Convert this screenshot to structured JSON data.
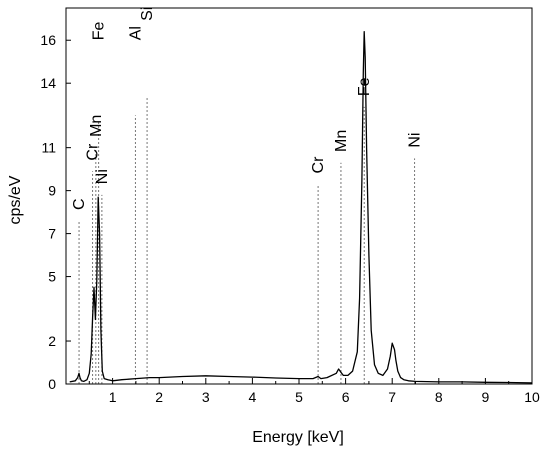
{
  "chart_data": {
    "type": "line",
    "title": "",
    "xlabel": "Energy [keV]",
    "ylabel": "cps/eV",
    "xlim": [
      0,
      10
    ],
    "ylim": [
      0,
      17.5
    ],
    "x_ticks": [
      1,
      2,
      3,
      4,
      5,
      6,
      7,
      8,
      9,
      10
    ],
    "y_ticks": [
      0,
      2,
      5,
      7,
      9,
      11,
      14,
      16
    ],
    "grid": false,
    "legend": "none",
    "colors": {
      "line": "#000000",
      "marker_line": "#777777",
      "frame": "#000000"
    },
    "spectrum": {
      "x": [
        0.08,
        0.2,
        0.25,
        0.28,
        0.3,
        0.33,
        0.38,
        0.45,
        0.5,
        0.54,
        0.57,
        0.6,
        0.63,
        0.66,
        0.69,
        0.72,
        0.75,
        0.78,
        0.82,
        0.9,
        1.0,
        1.2,
        1.5,
        1.8,
        2.0,
        2.5,
        3.0,
        3.5,
        4.0,
        4.5,
        5.0,
        5.3,
        5.41,
        5.47,
        5.6,
        5.8,
        5.85,
        5.9,
        5.95,
        6.05,
        6.15,
        6.25,
        6.3,
        6.35,
        6.38,
        6.4,
        6.42,
        6.45,
        6.5,
        6.55,
        6.62,
        6.7,
        6.8,
        6.9,
        6.96,
        7.0,
        7.05,
        7.08,
        7.12,
        7.18,
        7.25,
        7.35,
        7.5,
        8.0,
        8.5,
        9.0,
        9.5,
        10.0
      ],
      "y": [
        0.1,
        0.15,
        0.3,
        0.5,
        0.3,
        0.15,
        0.12,
        0.2,
        0.5,
        1.4,
        3.1,
        4.5,
        3.0,
        4.8,
        8.7,
        7.0,
        2.5,
        0.6,
        0.25,
        0.2,
        0.15,
        0.2,
        0.25,
        0.3,
        0.3,
        0.35,
        0.38,
        0.35,
        0.32,
        0.28,
        0.25,
        0.25,
        0.35,
        0.25,
        0.3,
        0.5,
        0.7,
        0.55,
        0.4,
        0.4,
        0.6,
        1.5,
        4.0,
        9.5,
        14.5,
        16.4,
        15.2,
        11.0,
        6.0,
        2.5,
        0.9,
        0.5,
        0.4,
        0.7,
        1.3,
        1.9,
        1.6,
        1.1,
        0.6,
        0.3,
        0.2,
        0.15,
        0.12,
        0.1,
        0.1,
        0.08,
        0.07,
        0.05
      ]
    },
    "element_markers": [
      {
        "label": "C",
        "x": 0.28,
        "y_top": 7.6,
        "label_y": 8.1
      },
      {
        "label": "Cr",
        "x": 0.57,
        "y_top": 9.9,
        "label_y": 10.4
      },
      {
        "label": "Mn",
        "x": 0.64,
        "y_top": 11.0,
        "label_y": 11.5
      },
      {
        "label": "Fe",
        "x": 0.7,
        "y_top": 12.2,
        "label_y": 16.0
      },
      {
        "label": "Ni",
        "x": 0.77,
        "y_top": 8.8,
        "label_y": 9.3
      },
      {
        "label": "Al",
        "x": 1.49,
        "y_top": 12.5,
        "label_y": 16.0
      },
      {
        "label": "Si",
        "x": 1.74,
        "y_top": 13.4,
        "label_y": 16.9
      },
      {
        "label": "Cr",
        "x": 5.41,
        "y_top": 9.3,
        "label_y": 9.8
      },
      {
        "label": "Mn",
        "x": 5.9,
        "y_top": 10.3,
        "label_y": 10.8
      },
      {
        "label": "Fe",
        "x": 6.4,
        "y_top": 12.9,
        "label_y": 13.4
      },
      {
        "label": "Ni",
        "x": 7.48,
        "y_top": 10.5,
        "label_y": 11.0
      }
    ]
  }
}
